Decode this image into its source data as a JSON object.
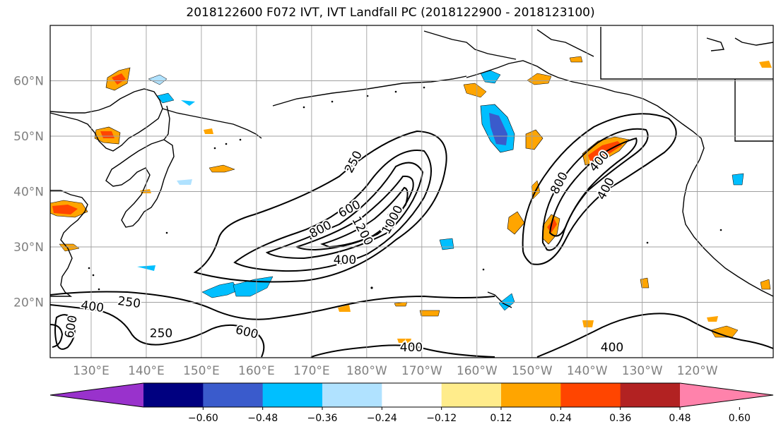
{
  "title": "2018122600 F072 IVT, IVT Landfall PC (2018122900 - 2018123100)",
  "lat_labels": [
    {
      "text": "60°N",
      "lat": 60
    },
    {
      "text": "50°N",
      "lat": 50
    },
    {
      "text": "40°N",
      "lat": 40
    },
    {
      "text": "30°N",
      "lat": 30
    },
    {
      "text": "20°N",
      "lat": 20
    }
  ],
  "lon_labels": [
    {
      "text": "130°E",
      "lon": 130
    },
    {
      "text": "140°E",
      "lon": 140
    },
    {
      "text": "150°E",
      "lon": 150
    },
    {
      "text": "160°E",
      "lon": 160
    },
    {
      "text": "170°E",
      "lon": 170
    },
    {
      "text": "180°W",
      "lon": 180
    },
    {
      "text": "170°W",
      "lon": 190
    },
    {
      "text": "160°W",
      "lon": 200
    },
    {
      "text": "150°W",
      "lon": 210
    },
    {
      "text": "140°W",
      "lon": 220
    },
    {
      "text": "130°W",
      "lon": 230
    },
    {
      "text": "120°W",
      "lon": 240
    }
  ],
  "contour_labels": [
    {
      "text": "250"
    },
    {
      "text": "600"
    },
    {
      "text": "800"
    },
    {
      "text": "1200"
    },
    {
      "text": "1000"
    },
    {
      "text": "400"
    },
    {
      "text": "400"
    },
    {
      "text": "600"
    },
    {
      "text": "250"
    },
    {
      "text": "600"
    },
    {
      "text": "400"
    },
    {
      "text": "800"
    },
    {
      "text": "400"
    },
    {
      "text": "250"
    },
    {
      "text": "400"
    },
    {
      "text": "400"
    }
  ],
  "colorbar": {
    "ticks": [
      "−0.60",
      "−0.48",
      "−0.36",
      "−0.24",
      "−0.12",
      "0.12",
      "0.24",
      "0.36",
      "0.48",
      "0.60"
    ],
    "colors": [
      "#9932cc",
      "#000080",
      "#3a5bcc",
      "#00bfff",
      "#b0e2ff",
      "#ffffff",
      "#ffec8b",
      "#ffa500",
      "#ff4500",
      "#b22222",
      "#ff82ab"
    ]
  }
}
